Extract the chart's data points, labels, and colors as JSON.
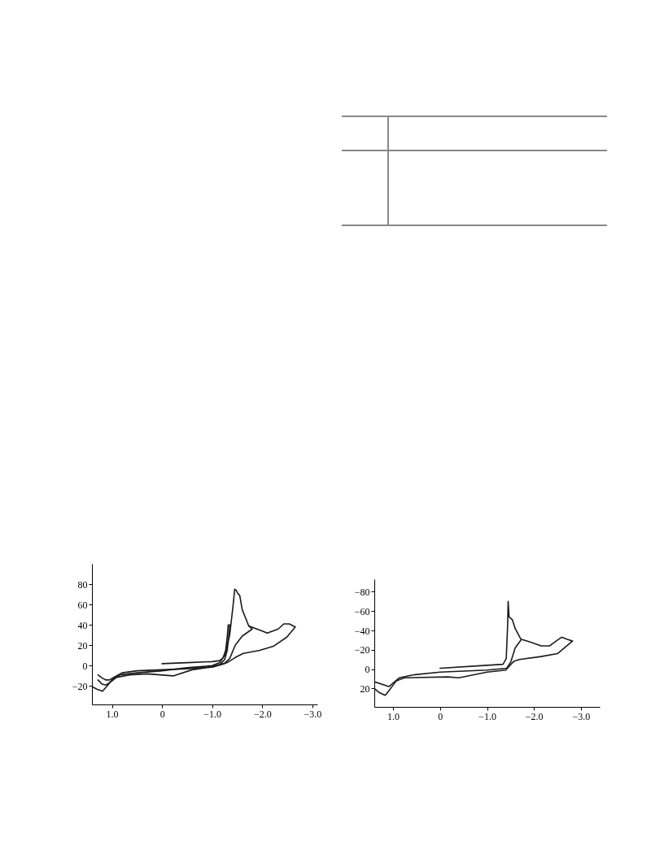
{
  "chart_data": [
    {
      "type": "line",
      "xlim": [
        1.4,
        -3.1
      ],
      "ylim": [
        -38,
        100
      ],
      "xticks": [
        {
          "value": 1,
          "label": "1.0"
        },
        {
          "value": 0,
          "label": "0"
        },
        {
          "value": -1,
          "label": "−1.0"
        },
        {
          "value": -2,
          "label": "−2.0"
        },
        {
          "value": -3,
          "label": "−3.0"
        }
      ],
      "yticks": [
        {
          "value": -20,
          "label": "−20"
        },
        0,
        20,
        40,
        60,
        80
      ],
      "series": [
        {
          "color": "#1a1a1a",
          "x": [
            0,
            -0.5,
            -1.0,
            -1.15,
            -1.22,
            -1.27,
            -1.3,
            -1.32,
            -1.35,
            -1.33,
            -1.3,
            -1.25,
            -1.15,
            -1.0,
            -0.5,
            0,
            0.5,
            0.8,
            0.95,
            1.05,
            1.12,
            1.2,
            1.28
          ],
          "values": [
            2,
            3,
            4,
            5,
            8,
            15,
            28,
            40,
            40,
            28,
            15,
            6,
            1,
            -1,
            -3,
            -4,
            -5,
            -7,
            -11,
            -14,
            -14,
            -12,
            -9
          ]
        },
        {
          "color": "#1a1a1a",
          "x": [
            1.28,
            1.2,
            1.12,
            1.0,
            0.85,
            0.5,
            0,
            -0.5,
            -1.0,
            -1.15,
            -1.25,
            -1.35,
            -1.42,
            -1.45,
            -1.48,
            -1.51,
            -1.55,
            -1.6,
            -1.73,
            -1.8,
            -1.6,
            -1.46,
            -1.35,
            -1.24,
            -1.0
          ],
          "values": [
            -14,
            -18,
            -19,
            -15,
            -9,
            -7,
            -5,
            -2,
            0,
            3,
            10,
            30,
            60,
            75,
            74,
            71,
            69,
            55,
            39,
            36,
            29,
            20,
            7,
            2,
            -1
          ]
        },
        {
          "color": "#1a1a1a",
          "x": [
            -1.73,
            -2.0,
            -2.1,
            -2.32,
            -2.43,
            -2.54,
            -2.66,
            -2.49,
            -2.22,
            -1.95,
            -1.62,
            -1.46,
            -1.3,
            -1.03,
            -0.6,
            -0.22,
            0.3,
            0.65,
            0.97,
            1.1,
            1.19,
            1.3,
            1.38
          ],
          "values": [
            39,
            34,
            32,
            36,
            41,
            41,
            38,
            28,
            19,
            15,
            12,
            8,
            3,
            -1,
            -4,
            -10,
            -8,
            -9,
            -12,
            -20,
            -25,
            -23,
            -21
          ]
        }
      ]
    },
    {
      "type": "line",
      "xlim": [
        1.4,
        -3.4
      ],
      "ylim": [
        39,
        -93
      ],
      "xticks": [
        {
          "value": 1,
          "label": "1.0"
        },
        {
          "value": 0,
          "label": "0"
        },
        {
          "value": -1,
          "label": "−1.0"
        },
        {
          "value": -2,
          "label": "−2.0"
        },
        {
          "value": -3,
          "label": "−3.0"
        }
      ],
      "yticks": [
        20,
        0,
        {
          "value": -20,
          "label": "−20"
        },
        {
          "value": -40,
          "label": "−40"
        },
        {
          "value": -60,
          "label": "−60"
        },
        {
          "value": -80,
          "label": "−80"
        }
      ],
      "series": [
        {
          "color": "#1a1a1a",
          "x": [
            0,
            -1.0,
            -1.34,
            -1.41,
            -1.44,
            -1.45,
            -1.47,
            -1.54,
            -1.6,
            -1.72,
            -1.92,
            -2.15,
            -2.33,
            -2.47,
            -2.59,
            -2.7,
            -2.82,
            -2.67,
            -2.5,
            -2.15,
            -1.69,
            -1.57,
            -1.51,
            -1.4,
            -1.0,
            -0.4,
            -0.17,
            0.76,
            0.93,
            1.13,
            1.17,
            1.3,
            1.4
          ],
          "values": [
            -1,
            -4,
            -5,
            -11,
            -47,
            -70,
            -54,
            -51,
            -42,
            -31,
            -28,
            -24,
            -24,
            -29,
            -33,
            -31,
            -29,
            -23,
            -16,
            -13,
            -10,
            -8,
            -5,
            1,
            3,
            9,
            8,
            9,
            12,
            25,
            27,
            24,
            20
          ]
        },
        {
          "color": "#1a1a1a",
          "x": [
            1.4,
            1.09,
            0.87,
            0.58,
            0,
            -1.0,
            -1.42,
            -1.51,
            -1.6,
            -1.72
          ],
          "values": [
            13,
            18,
            9,
            6,
            3,
            1,
            -1,
            -8,
            -22,
            -30
          ]
        }
      ]
    }
  ]
}
